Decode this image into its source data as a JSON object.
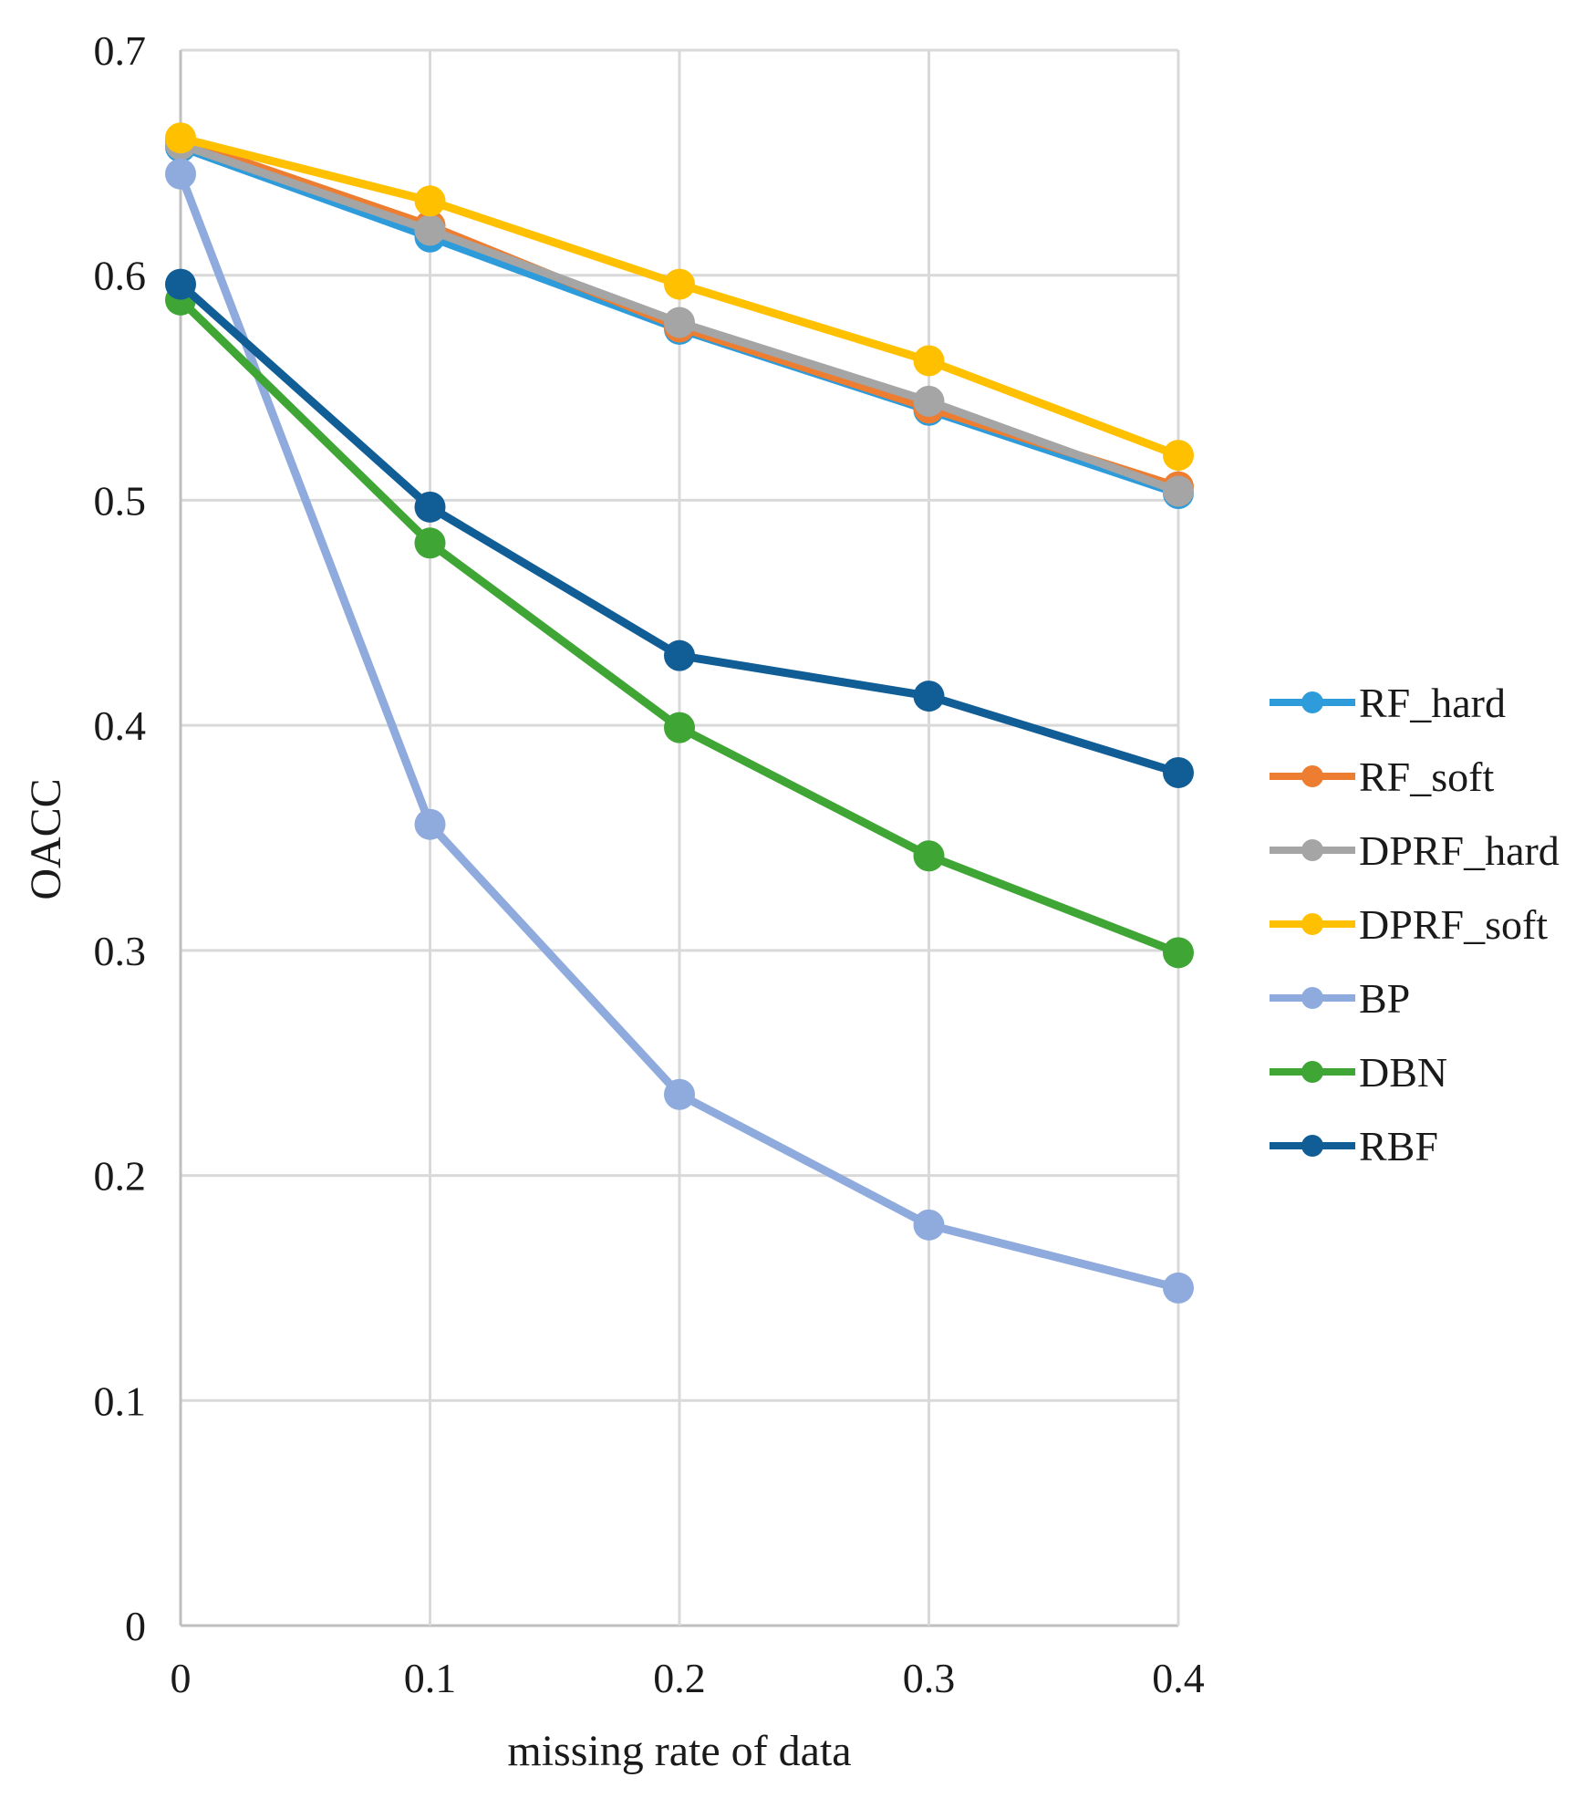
{
  "chart_data": {
    "type": "line",
    "title": "",
    "xlabel": "missing  rate of data",
    "ylabel": "OACC",
    "x": [
      0,
      0.1,
      0.2,
      0.3,
      0.4
    ],
    "x_tick_labels": [
      "0",
      "0.1",
      "0.2",
      "0.3",
      "0.4"
    ],
    "y_tick_labels": [
      "0",
      "0.1",
      "0.2",
      "0.3",
      "0.4",
      "0.5",
      "0.6",
      "0.7"
    ],
    "xlim": [
      0,
      0.4
    ],
    "ylim": [
      0,
      0.7
    ],
    "grid": true,
    "legend_position": "right",
    "series": [
      {
        "name": "RF_hard",
        "color": "#2E9BDA",
        "values": [
          0.657,
          0.617,
          0.576,
          0.54,
          0.503
        ]
      },
      {
        "name": "RF_soft",
        "color": "#ED7D31",
        "values": [
          0.66,
          0.622,
          0.577,
          0.541,
          0.506
        ]
      },
      {
        "name": "DPRF_hard",
        "color": "#A5A5A5",
        "values": [
          0.658,
          0.62,
          0.579,
          0.544,
          0.504
        ]
      },
      {
        "name": "DPRF_soft",
        "color": "#FFC000",
        "values": [
          0.661,
          0.633,
          0.596,
          0.562,
          0.52
        ]
      },
      {
        "name": "BP",
        "color": "#8FAADC",
        "values": [
          0.645,
          0.356,
          0.236,
          0.178,
          0.15
        ]
      },
      {
        "name": "DBN",
        "color": "#3FA535",
        "values": [
          0.589,
          0.481,
          0.399,
          0.342,
          0.299
        ]
      },
      {
        "name": "RBF",
        "color": "#115E96",
        "values": [
          0.596,
          0.497,
          0.431,
          0.413,
          0.379
        ]
      }
    ]
  }
}
